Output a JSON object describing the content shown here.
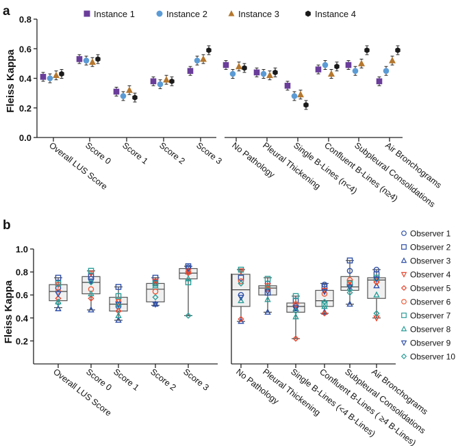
{
  "chart_data": [
    {
      "panel": "a",
      "type": "scatter",
      "ylabel": "Fleiss Kappa",
      "ylim": [
        0,
        0.8
      ],
      "yticks": [
        "0.0",
        "0.2",
        "0.4",
        "0.6",
        "0.8"
      ],
      "yticks_values": [
        0,
        0.2,
        0.4,
        0.6,
        0.8
      ],
      "legend_placement": "top",
      "categories": [
        "Overall LUS Score",
        "Score 0",
        "Score 1",
        "Score 2",
        "Score 3",
        "No Pathology",
        "Pleural Thickening",
        "Single B-Lines (n<4)",
        "Confluent B-Lines (n≥4)",
        "Subpleural Consolidations",
        "Air Bronchograms"
      ],
      "error": 0.03,
      "series": [
        {
          "name": "Instance 1",
          "marker": "square",
          "color": "#6a3d9a",
          "values": [
            0.41,
            0.53,
            0.31,
            0.38,
            0.45,
            0.49,
            0.44,
            0.35,
            0.46,
            0.49,
            0.38
          ]
        },
        {
          "name": "Instance 2",
          "marker": "circle",
          "color": "#5b9bd5",
          "values": [
            0.4,
            0.52,
            0.28,
            0.36,
            0.52,
            0.43,
            0.43,
            0.28,
            0.49,
            0.45,
            0.45
          ]
        },
        {
          "name": "Instance 3",
          "marker": "triangle",
          "color": "#b5772e",
          "values": [
            0.42,
            0.51,
            0.32,
            0.39,
            0.53,
            0.48,
            0.42,
            0.29,
            0.43,
            0.5,
            0.52
          ]
        },
        {
          "name": "Instance 4",
          "marker": "hexagon",
          "color": "#1a1a1a",
          "values": [
            0.43,
            0.53,
            0.27,
            0.38,
            0.59,
            0.47,
            0.44,
            0.22,
            0.48,
            0.59,
            0.59
          ]
        }
      ]
    },
    {
      "panel": "b",
      "type": "box",
      "ylabel": "Fleiss Kappa",
      "ylim": [
        0,
        1.0
      ],
      "yticks": [
        "0.2",
        "0.4",
        "0.6",
        "0.8",
        "1.0"
      ],
      "yticks_values": [
        0.2,
        0.4,
        0.6,
        0.8,
        1.0
      ],
      "legend_placement": "right",
      "categories": [
        "Overall LUS Score",
        "Score 0",
        "Score 1",
        "Score 2",
        "Score 3",
        "No Pathology",
        "Pleural Thickening",
        "Single B-Lines (<4 B-Lines)",
        "Confluent B-Lines ( ≥4 B-Lines)",
        "Subpleural Consolidations",
        "Air Bronchograms"
      ],
      "boxes": [
        {
          "min": 0.49,
          "q1": 0.55,
          "median": 0.63,
          "q3": 0.69,
          "max": 0.75
        },
        {
          "min": 0.47,
          "q1": 0.61,
          "median": 0.71,
          "q3": 0.76,
          "max": 0.81
        },
        {
          "min": 0.38,
          "q1": 0.46,
          "median": 0.52,
          "q3": 0.58,
          "max": 0.67
        },
        {
          "min": 0.51,
          "q1": 0.54,
          "median": 0.65,
          "q3": 0.7,
          "max": 0.75
        },
        {
          "min": 0.42,
          "q1": 0.74,
          "median": 0.79,
          "q3": 0.83,
          "max": 0.85
        },
        {
          "min": 0.37,
          "q1": 0.5,
          "median": 0.645,
          "q3": 0.78,
          "max": 0.82
        },
        {
          "min": 0.45,
          "q1": 0.6,
          "median": 0.66,
          "q3": 0.68,
          "max": 0.75
        },
        {
          "min": 0.22,
          "q1": 0.45,
          "median": 0.5,
          "q3": 0.53,
          "max": 0.59
        },
        {
          "min": 0.44,
          "q1": 0.5,
          "median": 0.55,
          "q3": 0.64,
          "max": 0.7
        },
        {
          "min": 0.52,
          "q1": 0.64,
          "median": 0.67,
          "q3": 0.76,
          "max": 0.9
        },
        {
          "min": 0.4,
          "q1": 0.57,
          "median": 0.73,
          "q3": 0.75,
          "max": 0.82
        }
      ],
      "observers": [
        {
          "name": "Observer 1",
          "marker": "circle",
          "color": "#2e4fa8",
          "values": [
            0.66,
            0.74,
            0.5,
            0.7,
            0.84,
            0.6,
            0.7,
            0.5,
            0.69,
            0.81,
            0.82
          ]
        },
        {
          "name": "Observer 2",
          "marker": "square",
          "color": "#2e4fa8",
          "values": [
            0.75,
            0.76,
            0.67,
            0.75,
            0.85,
            0.75,
            0.62,
            0.55,
            0.67,
            0.9,
            0.78
          ]
        },
        {
          "name": "Observer 3",
          "marker": "triangle",
          "color": "#2e4fa8",
          "values": [
            0.48,
            0.47,
            0.38,
            0.52,
            0.8,
            0.37,
            0.45,
            0.48,
            0.45,
            0.52,
            0.68
          ]
        },
        {
          "name": "Observer 4",
          "marker": "triangle-down",
          "color": "#e8432b",
          "values": [
            0.69,
            0.79,
            0.55,
            0.72,
            0.81,
            0.81,
            0.68,
            0.51,
            0.64,
            0.71,
            0.4
          ]
        },
        {
          "name": "Observer 5",
          "marker": "diamond",
          "color": "#e8432b",
          "values": [
            0.57,
            0.57,
            0.46,
            0.7,
            0.79,
            0.39,
            0.66,
            0.22,
            0.44,
            0.68,
            0.71
          ]
        },
        {
          "name": "Observer 6",
          "marker": "circle",
          "color": "#ee5a36",
          "values": [
            0.63,
            0.65,
            0.54,
            0.63,
            0.8,
            0.72,
            0.65,
            0.52,
            0.61,
            0.73,
            0.72
          ]
        },
        {
          "name": "Observer 7",
          "marker": "square",
          "color": "#2a9d98",
          "values": [
            0.7,
            0.81,
            0.59,
            0.7,
            0.71,
            0.82,
            0.74,
            0.59,
            0.52,
            0.7,
            0.75
          ]
        },
        {
          "name": "Observer 8",
          "marker": "triangle",
          "color": "#2a9d98",
          "values": [
            0.54,
            0.61,
            0.42,
            0.68,
            0.74,
            0.55,
            0.56,
            0.41,
            0.5,
            0.66,
            0.6
          ]
        },
        {
          "name": "Observer 9",
          "marker": "triangle-down",
          "color": "#2e4fa8",
          "values": [
            0.61,
            0.72,
            0.52,
            0.52,
            0.83,
            0.58,
            0.63,
            0.49,
            0.63,
            0.67,
            0.74
          ]
        },
        {
          "name": "Observer 10",
          "marker": "diamond",
          "color": "#2a9d98",
          "values": [
            0.53,
            0.71,
            0.51,
            0.58,
            0.42,
            0.7,
            0.67,
            0.46,
            0.54,
            0.62,
            0.44
          ]
        }
      ]
    }
  ],
  "labels": {
    "panel_a": "a",
    "panel_b": "b"
  }
}
